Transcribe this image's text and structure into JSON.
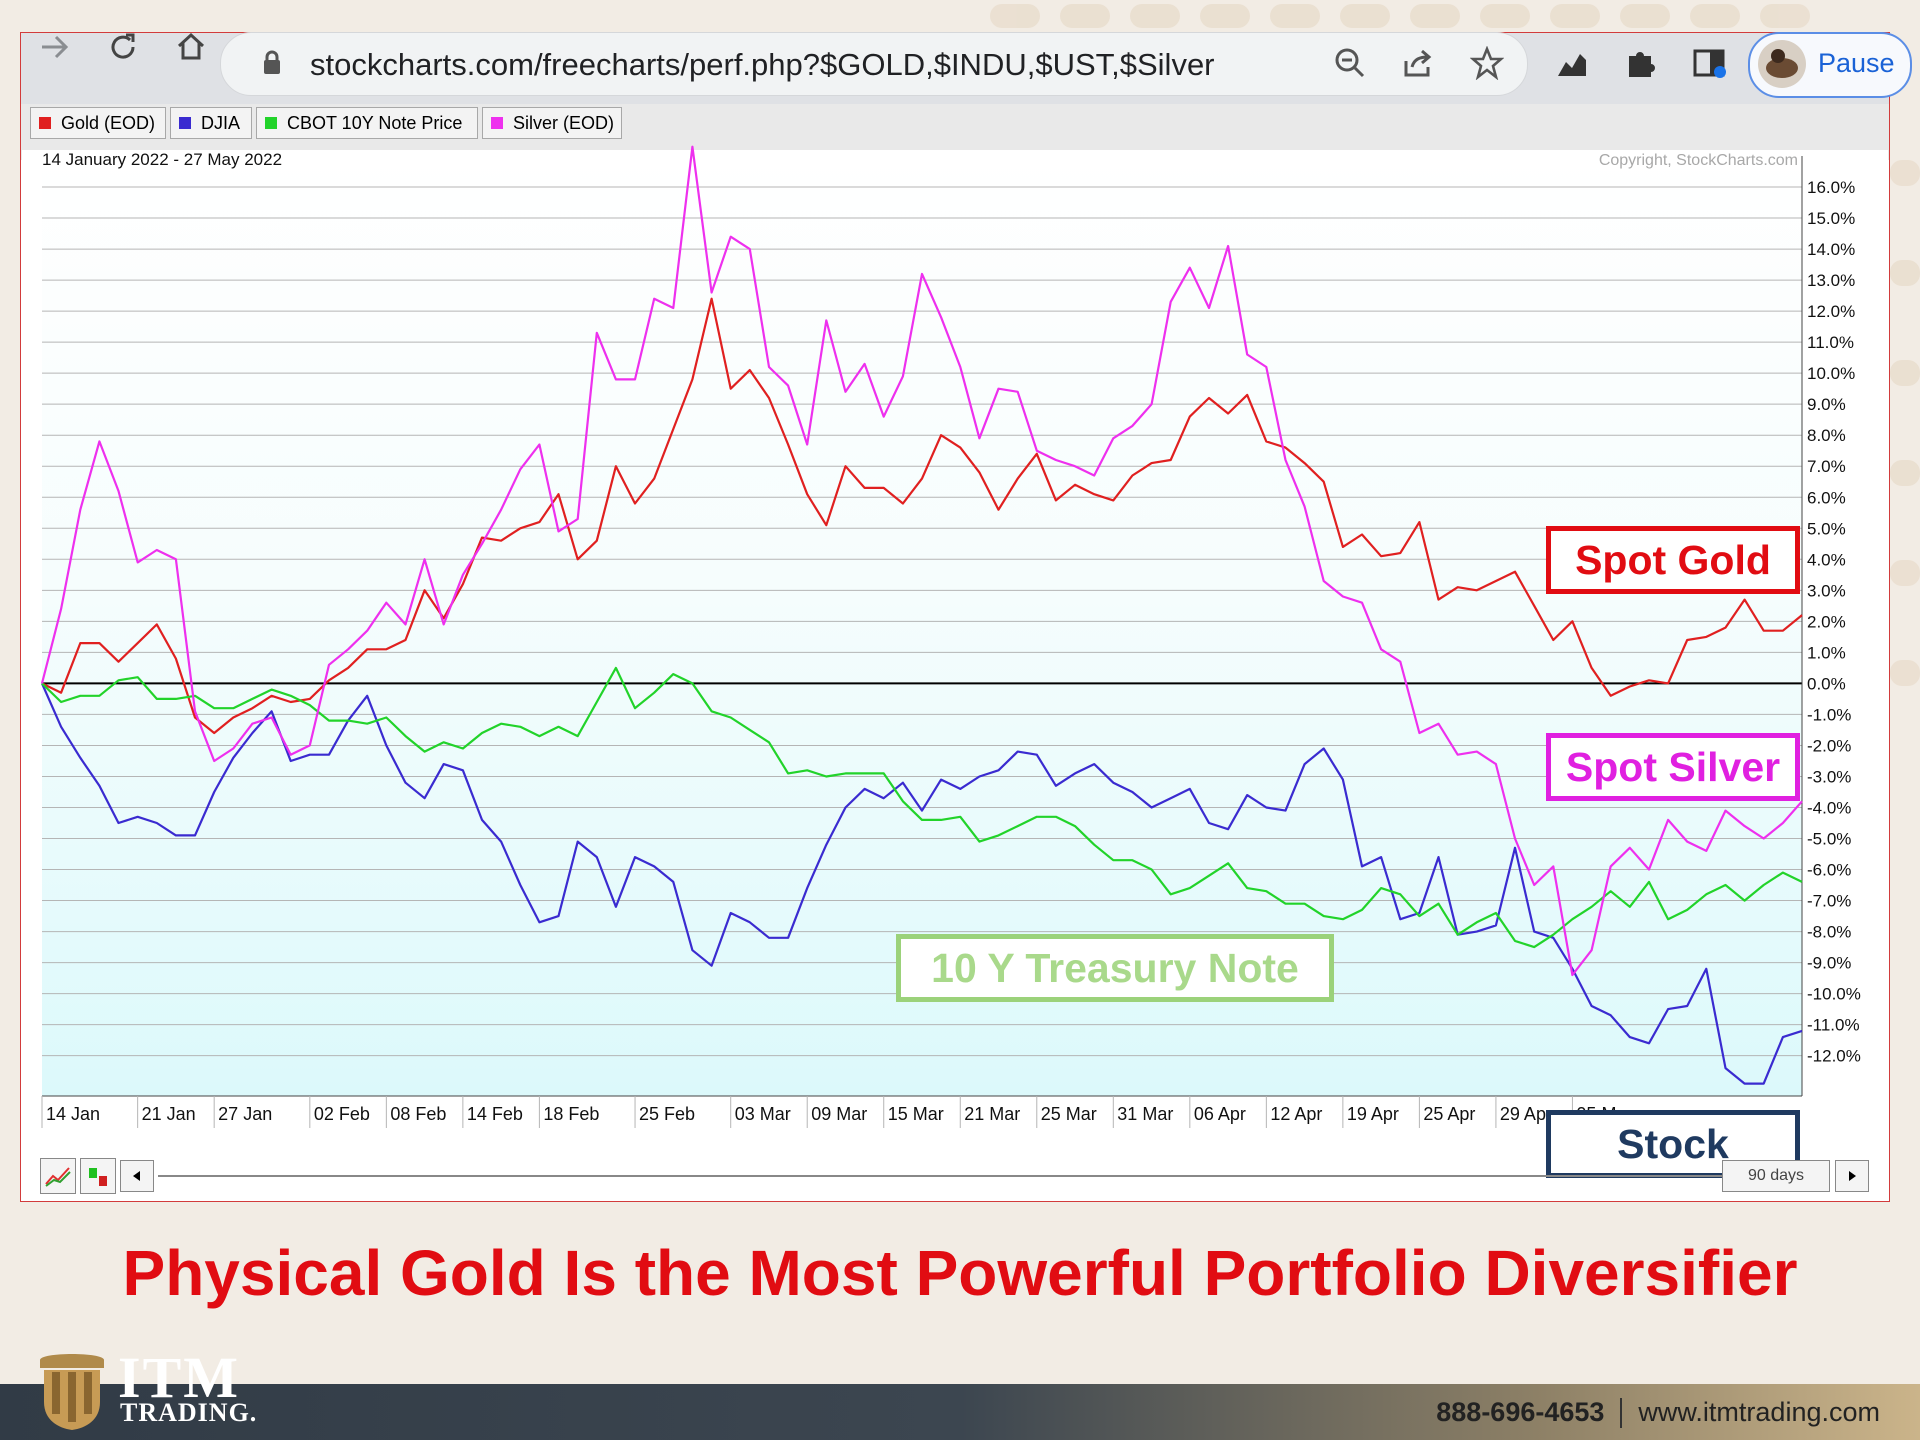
{
  "browser": {
    "url": "stockcharts.com/freecharts/perf.php?$GOLD,$INDU,$UST,$Silver",
    "profile_label": "Pause"
  },
  "chart_data": {
    "type": "line",
    "date_range": "14 January 2022 - 27 May 2022",
    "copyright": "Copyright, StockCharts.com",
    "ylim": [
      -13.3,
      17.0
    ],
    "yticks": [
      16,
      15,
      14,
      13,
      12,
      11,
      10,
      9,
      8,
      7,
      6,
      5,
      4,
      3,
      2,
      1,
      0,
      -1,
      -2,
      -3,
      -4,
      -5,
      -6,
      -7,
      -8,
      -9,
      -10,
      -11,
      -12
    ],
    "ytick_labels": [
      "16.0%",
      "15.0%",
      "14.0%",
      "13.0%",
      "12.0%",
      "11.0%",
      "10.0%",
      "9.0%",
      "8.0%",
      "7.0%",
      "6.0%",
      "5.0%",
      "4.0%",
      "3.0%",
      "2.0%",
      "1.0%",
      "0.0%",
      "-1.0%",
      "-2.0%",
      "-3.0%",
      "-4.0%",
      "-5.0%",
      "-6.0%",
      "-7.0%",
      "-8.0%",
      "-9.0%",
      "-10.0%",
      "-11.0%",
      "-12.0%"
    ],
    "x_tick_labels": [
      "14 Jan",
      "21 Jan",
      "27 Jan",
      "02 Feb",
      "08 Feb",
      "14 Feb",
      "18 Feb",
      "25 Feb",
      "03 Mar",
      "09 Mar",
      "15 Mar",
      "21 Mar",
      "25 Mar",
      "31 Mar",
      "06 Apr",
      "12 Apr",
      "19 Apr",
      "25 Apr",
      "29 Apr",
      "05 M"
    ],
    "x_tick_index": [
      0,
      5,
      9,
      14,
      18,
      22,
      26,
      31,
      36,
      40,
      44,
      48,
      52,
      56,
      60,
      64,
      68,
      72,
      76,
      80
    ],
    "n_points": 93,
    "series": [
      {
        "name": "Gold (EOD)",
        "color": "#e02020",
        "values": [
          0.0,
          -0.3,
          1.3,
          1.3,
          0.7,
          1.3,
          1.9,
          0.8,
          -1.1,
          -1.6,
          -1.1,
          -0.8,
          -0.4,
          -0.6,
          -0.5,
          0.1,
          0.5,
          1.1,
          1.1,
          1.4,
          3.0,
          2.1,
          3.2,
          4.7,
          4.6,
          5.0,
          5.2,
          6.1,
          4.0,
          4.6,
          7.0,
          5.8,
          6.6,
          8.2,
          9.8,
          12.4,
          9.5,
          10.1,
          9.2,
          7.7,
          6.1,
          5.1,
          7.0,
          6.3,
          6.3,
          5.8,
          6.6,
          8.0,
          7.6,
          6.8,
          5.6,
          6.6,
          7.4,
          5.9,
          6.4,
          6.1,
          5.9,
          6.7,
          7.1,
          7.2,
          8.6,
          9.2,
          8.7,
          9.3,
          7.8,
          7.6,
          7.1,
          6.5,
          4.4,
          4.8,
          4.1,
          4.2,
          5.2,
          2.7,
          3.1,
          3.0,
          3.3,
          3.6,
          2.5,
          1.4,
          2.0,
          0.5,
          -0.4,
          -0.1,
          0.1,
          0.0,
          1.4,
          1.5,
          1.8,
          2.7,
          1.7,
          1.7,
          2.2
        ]
      },
      {
        "name": "DJIA",
        "color": "#3a2bd0",
        "values": [
          0.0,
          -1.4,
          -2.4,
          -3.3,
          -4.5,
          -4.3,
          -4.5,
          -4.9,
          -4.9,
          -3.5,
          -2.4,
          -1.6,
          -0.9,
          -2.5,
          -2.3,
          -2.3,
          -1.2,
          -0.4,
          -2.0,
          -3.2,
          -3.7,
          -2.6,
          -2.8,
          -4.4,
          -5.1,
          -6.5,
          -7.7,
          -7.5,
          -5.1,
          -5.6,
          -7.2,
          -5.6,
          -5.9,
          -6.4,
          -8.6,
          -9.1,
          -7.4,
          -7.7,
          -8.2,
          -8.2,
          -6.6,
          -5.2,
          -4.0,
          -3.4,
          -3.7,
          -3.2,
          -4.1,
          -3.1,
          -3.4,
          -3.0,
          -2.8,
          -2.2,
          -2.3,
          -3.3,
          -2.9,
          -2.6,
          -3.2,
          -3.5,
          -4.0,
          -3.7,
          -3.4,
          -4.5,
          -4.7,
          -3.6,
          -4.0,
          -4.1,
          -2.6,
          -2.1,
          -3.1,
          -5.9,
          -5.6,
          -7.6,
          -7.4,
          -5.6,
          -8.1,
          -8.0,
          -7.8,
          -5.3,
          -8.0,
          -8.2,
          -9.2,
          -10.4,
          -10.7,
          -11.4,
          -11.6,
          -10.5,
          -10.4,
          -9.2,
          -12.4,
          -12.9,
          -12.9,
          -11.4,
          -11.2
        ]
      },
      {
        "name": "CBOT 10Y Note Price",
        "color": "#22d32a",
        "values": [
          0.0,
          -0.6,
          -0.4,
          -0.4,
          0.1,
          0.2,
          -0.5,
          -0.5,
          -0.4,
          -0.8,
          -0.8,
          -0.5,
          -0.2,
          -0.4,
          -0.7,
          -1.2,
          -1.2,
          -1.3,
          -1.1,
          -1.7,
          -2.2,
          -1.9,
          -2.1,
          -1.6,
          -1.3,
          -1.4,
          -1.7,
          -1.4,
          -1.7,
          -0.6,
          0.5,
          -0.8,
          -0.3,
          0.3,
          0.0,
          -0.9,
          -1.1,
          -1.5,
          -1.9,
          -2.9,
          -2.8,
          -3.0,
          -2.9,
          -2.9,
          -2.9,
          -3.8,
          -4.4,
          -4.4,
          -4.3,
          -5.1,
          -4.9,
          -4.6,
          -4.3,
          -4.3,
          -4.6,
          -5.2,
          -5.7,
          -5.7,
          -6.0,
          -6.8,
          -6.6,
          -6.2,
          -5.8,
          -6.6,
          -6.7,
          -7.1,
          -7.1,
          -7.5,
          -7.6,
          -7.3,
          -6.6,
          -6.8,
          -7.5,
          -7.1,
          -8.1,
          -7.7,
          -7.4,
          -8.3,
          -8.5,
          -8.1,
          -7.6,
          -7.2,
          -6.7,
          -7.2,
          -6.4,
          -7.6,
          -7.3,
          -6.8,
          -6.5,
          -7.0,
          -6.5,
          -6.1,
          -6.4
        ]
      },
      {
        "name": "Silver (EOD)",
        "color": "#ee30ee",
        "values": [
          0.0,
          2.4,
          5.6,
          7.8,
          6.2,
          3.9,
          4.3,
          4.0,
          -0.9,
          -2.5,
          -2.1,
          -1.3,
          -1.1,
          -2.3,
          -2.0,
          0.6,
          1.1,
          1.7,
          2.6,
          1.9,
          4.0,
          1.9,
          3.5,
          4.5,
          5.6,
          6.9,
          7.7,
          4.9,
          5.3,
          11.3,
          9.8,
          9.8,
          12.4,
          12.1,
          17.3,
          12.6,
          14.4,
          14.0,
          10.2,
          9.6,
          7.7,
          11.7,
          9.4,
          10.3,
          8.6,
          9.9,
          13.2,
          11.8,
          10.2,
          7.9,
          9.5,
          9.4,
          7.5,
          7.2,
          7.0,
          6.7,
          7.9,
          8.3,
          9.0,
          12.3,
          13.4,
          12.1,
          14.1,
          10.6,
          10.2,
          7.2,
          5.7,
          3.3,
          2.8,
          2.6,
          1.1,
          0.7,
          -1.6,
          -1.3,
          -2.3,
          -2.2,
          -2.6,
          -5.0,
          -6.5,
          -5.9,
          -9.4,
          -8.6,
          -5.9,
          -5.3,
          -6.0,
          -4.4,
          -5.1,
          -5.4,
          -4.1,
          -4.6,
          -5.0,
          -4.5,
          -3.8
        ]
      }
    ]
  },
  "labels": {
    "spot_gold": "Spot Gold",
    "spot_silver": "Spot Silver",
    "treasury": "10 Y Treasury Note",
    "stock": "Stock"
  },
  "colors": {
    "gold_accent": "#e10c12",
    "silver_accent": "#e020e0",
    "treasury_accent": "#9bd27a",
    "stock_accent": "#1f3a60"
  },
  "scrollbar": {
    "range_label": "90 days"
  },
  "caption": "Physical Gold Is the Most Powerful Portfolio Diversifier",
  "footer": {
    "logo_line1": "ITM",
    "logo_line2": "TRADING.",
    "phone": "888-696-4653",
    "website": "www.itmtrading.com"
  }
}
